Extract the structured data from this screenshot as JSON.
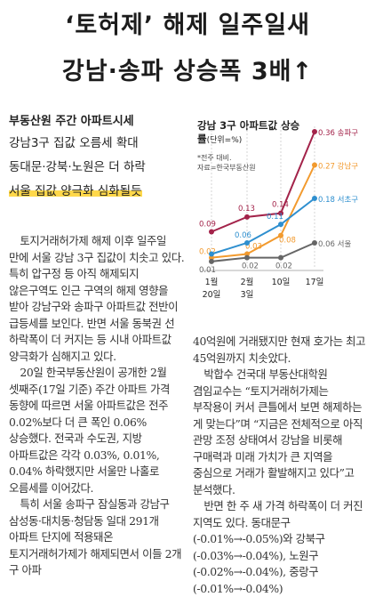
{
  "headline": {
    "line1": "‘토허제’ 해제 일주일새",
    "line2": "강남·송파 상승폭 3배↑"
  },
  "section_title": "부동산원 주간 아파트시세",
  "subheads": [
    "강남3구 집값 오름세 확대",
    "동대문·강북·노원은 더 하락",
    "서울 집값 양극화 심화될듯"
  ],
  "chart_data": {
    "type": "line",
    "title": "강남 3구 아파트값 상승률",
    "unit": "(단위=%)",
    "note": "*전주 대비.",
    "source": "자료=한국부동산원",
    "categories": [
      "1월 20일",
      "2월 3일",
      "10일",
      "17일"
    ],
    "category_lines": [
      [
        "1월",
        "20일"
      ],
      [
        "2월",
        "3일"
      ],
      [
        "10일",
        ""
      ],
      [
        "17일",
        ""
      ]
    ],
    "series": [
      {
        "name": "송파구",
        "color": "#a3234a",
        "values": [
          0.09,
          0.13,
          0.14,
          0.36
        ],
        "labels": [
          "0.09",
          "0.13",
          "0.14",
          "0.36"
        ]
      },
      {
        "name": "강남구",
        "color": "#f29a2e",
        "values": [
          0.02,
          0.03,
          0.08,
          0.27
        ],
        "labels": [
          "0.02",
          "0.03",
          "0.08",
          "0.27"
        ]
      },
      {
        "name": "서초구",
        "color": "#2e8fcf",
        "values": [
          0.03,
          0.06,
          0.11,
          0.18
        ],
        "labels": [
          "",
          "0.06",
          "0.11",
          "0.18"
        ]
      },
      {
        "name": "서울",
        "color": "#666666",
        "values": [
          0.01,
          0.02,
          0.02,
          0.06
        ],
        "labels": [
          "0.01",
          "0.02",
          "0.02",
          "0.06"
        ]
      }
    ]
  },
  "left_paragraphs": [
    "토지거래허가제 해제 이후 일주일 만에 서울 강남 3구 집값이 치솟고 있다. 특히 압구정 등 아직 해제되지 않은구역도 인근 구역의 해제 영향을 받아 강남구와 송파구 아파트값 전반이 급등세를 보인다. 반면 서울 동북권 선 하락폭이 더 커지는 등 시내 아파트값 양극화가 심해지고 있다.",
    "20일 한국부동산원이 공개한 2월 셋째주(17일 기준) 주간 아파트 가격 동향에 따르면 서울 아파트값은 전주 0.02%보다 더 큰 폭인 0.06% 상승했다. 전국과 수도권, 지방 아파트값은 각각 0.03%, 0.01%, 0.04% 하락했지만 서울만 나홀로 오름세를 이어갔다.",
    "특히 서울 송파구 잠실동과 강남구 삼성동·대치동·청담동 일대 291개 아파트 단지에 적용돼온 토지거래허가제가 해제되면서 이들 2개 구 아파"
  ],
  "right_paragraphs": [
    "40억원에 거래됐지만 현재 호가는 최고 45억원까지 치솟았다.",
    "박합수 건국대 부동산대학원 겸임교수는 “토지거래허가제는 부작용이 커서 큰틀에서 보면 해제하는 게 맞는다”며 “지금은 전체적으로 아직 관망 조정 상태여서 강남을 비롯해 구매력과 미래 가치가 큰 지역을 중심으로 거래가 활발해지고 있다”고 분석했다.",
    "반면 한 주 새 가격 하락폭이 더 커진 지역도 있다. 동대문구(-0.01%→-0.05%)와 강북구(-0.03%→-0.04%), 노원구(-0.02%→-0.04%), 중랑구(-0.01%→-0.04%)"
  ]
}
